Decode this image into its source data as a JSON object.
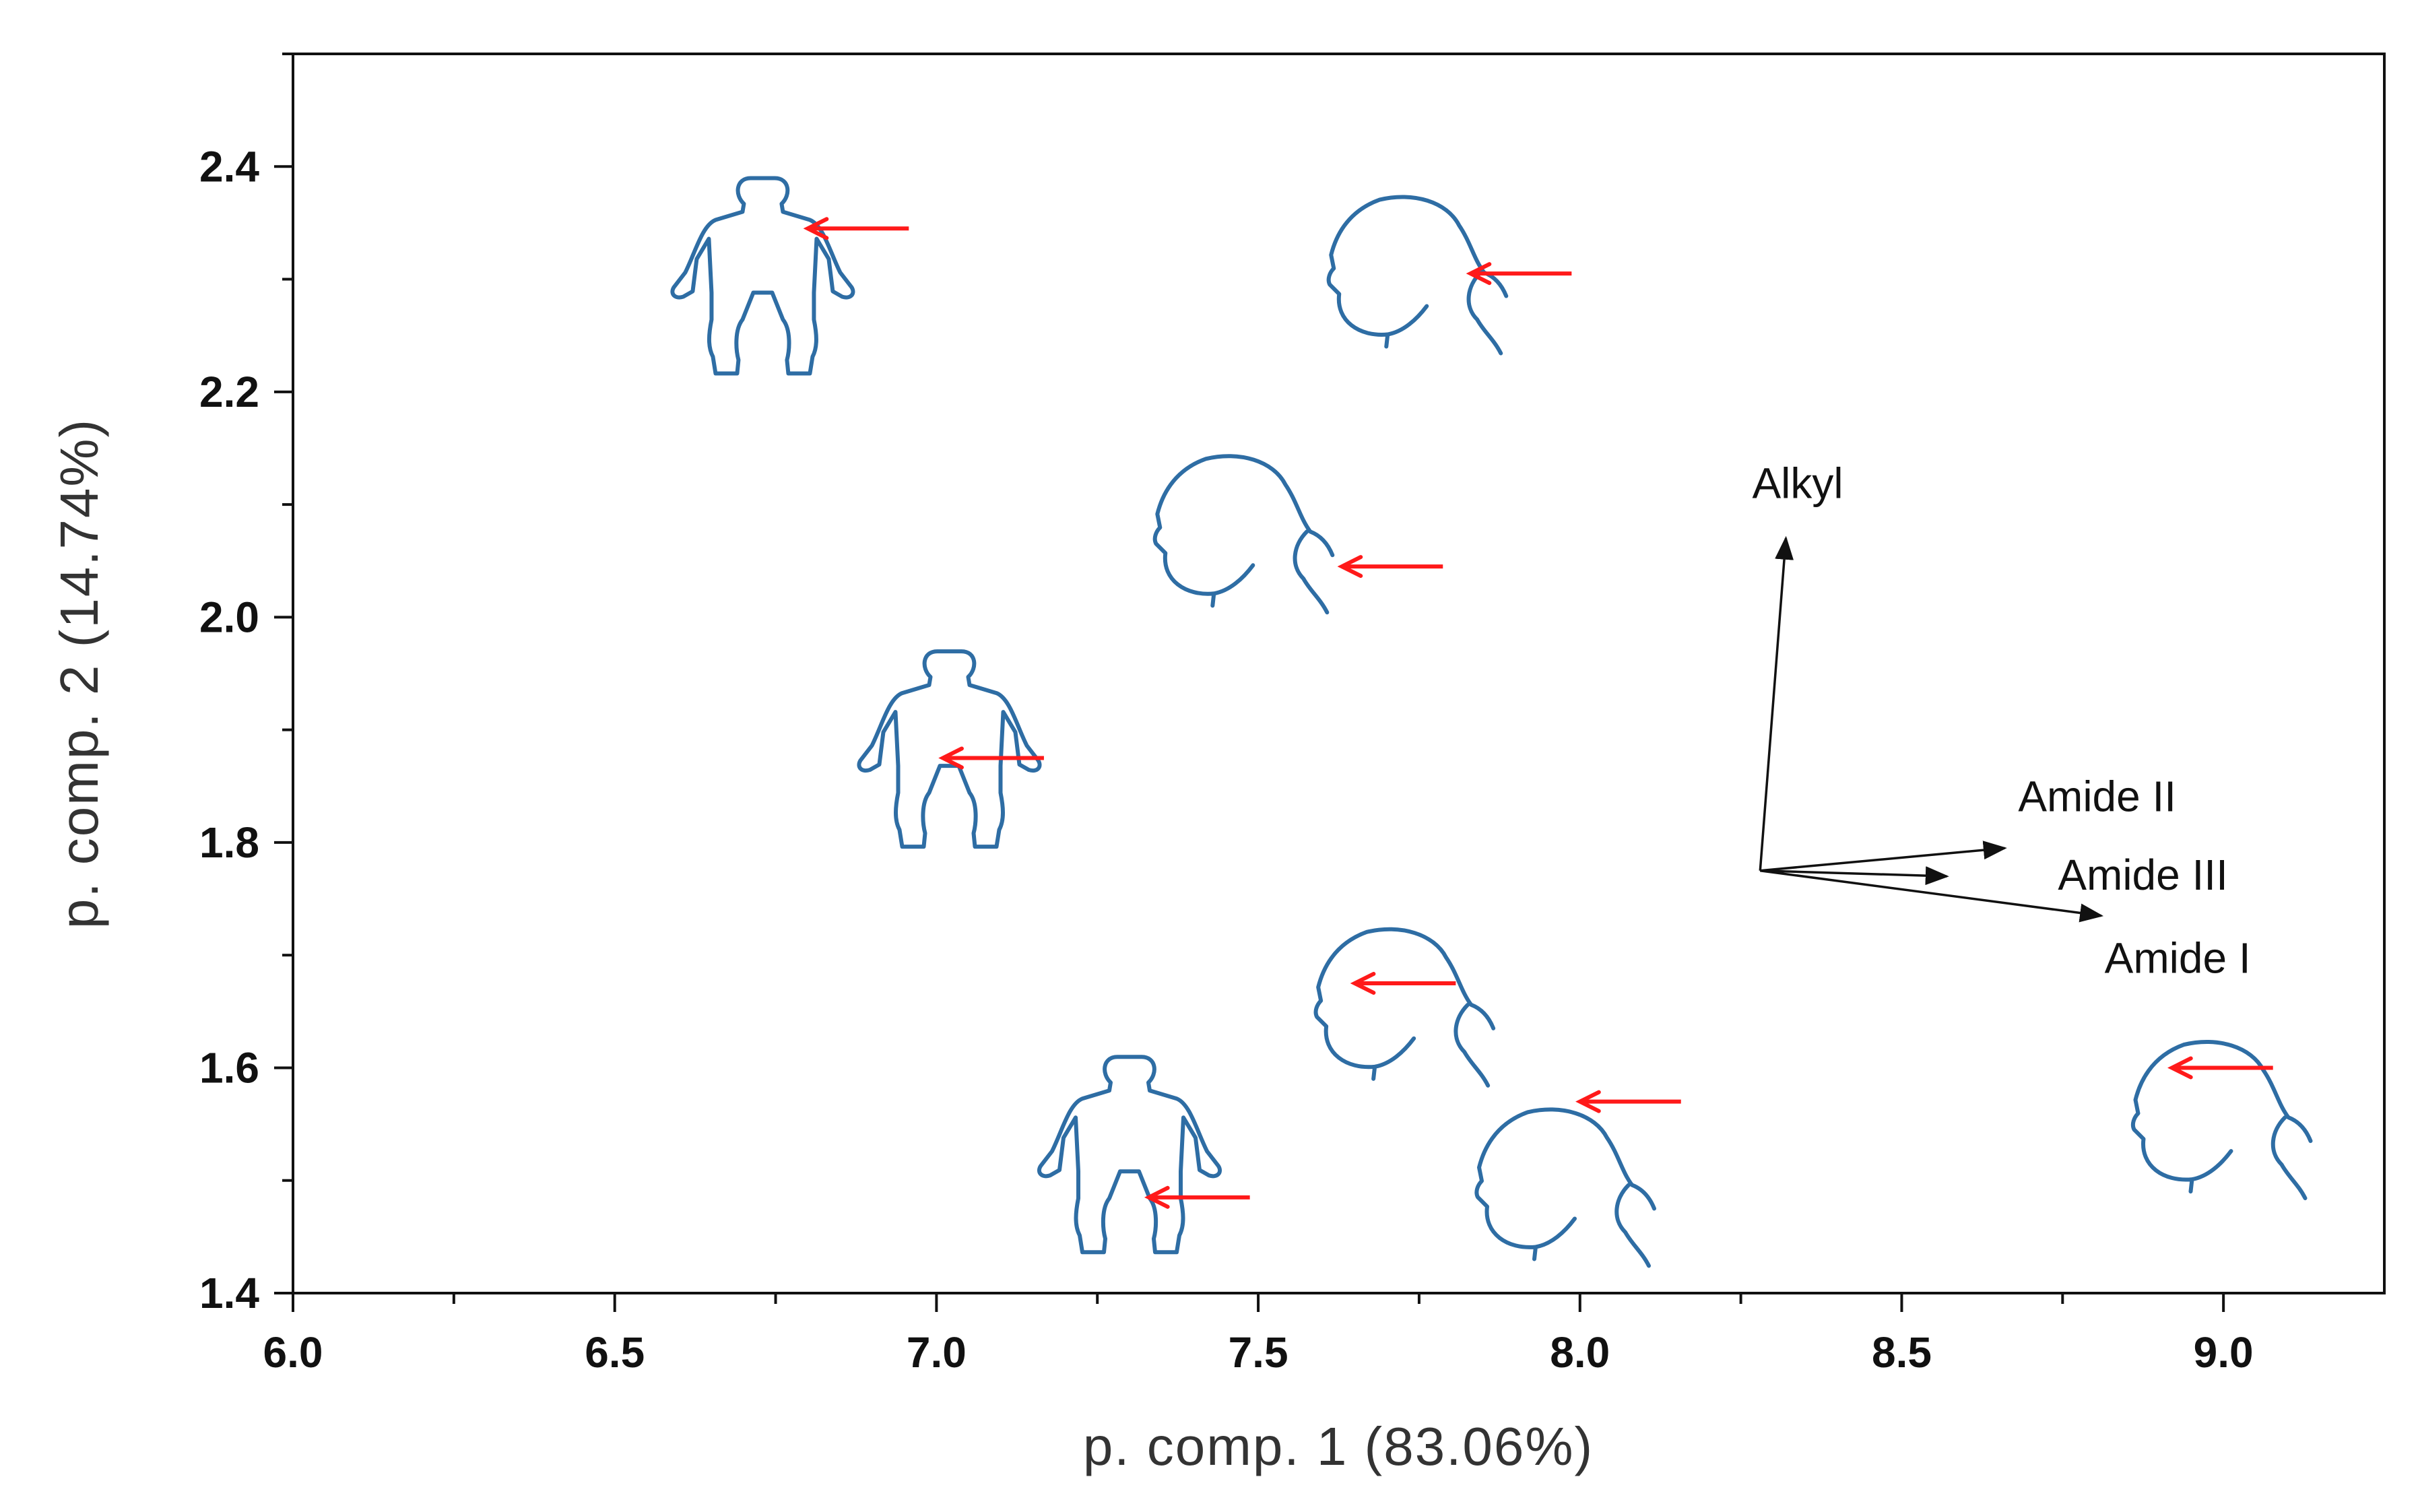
{
  "chart_data": {
    "type": "scatter",
    "title": "",
    "xlabel": "p. comp. 1 (83.06%)",
    "ylabel": "p. comp. 2 (14.74%)",
    "xlim": [
      6.0,
      9.25
    ],
    "ylim": [
      1.4,
      2.5
    ],
    "x_ticks": [
      "6.0",
      "6.5",
      "7.0",
      "7.5",
      "8.0",
      "8.5",
      "9.0"
    ],
    "y_ticks": [
      "1.4",
      "1.6",
      "1.8",
      "2.0",
      "2.2",
      "2.4"
    ],
    "grid": false,
    "points": [
      {
        "icon": "body-icon",
        "x": 6.73,
        "y": 2.3,
        "arrow_to": [
          6.8,
          2.345
        ]
      },
      {
        "icon": "head-icon",
        "x": 7.72,
        "y": 2.3,
        "arrow_to": [
          7.83,
          2.305
        ]
      },
      {
        "icon": "head-icon",
        "x": 7.45,
        "y": 2.07,
        "arrow_to": [
          7.63,
          2.045
        ]
      },
      {
        "icon": "body-icon",
        "x": 7.02,
        "y": 1.88,
        "arrow_to": [
          7.01,
          1.875
        ]
      },
      {
        "icon": "head-icon",
        "x": 7.7,
        "y": 1.65,
        "arrow_to": [
          7.65,
          1.675
        ]
      },
      {
        "icon": "body-icon",
        "x": 7.3,
        "y": 1.52,
        "arrow_to": [
          7.33,
          1.485
        ]
      },
      {
        "icon": "head-icon",
        "x": 7.95,
        "y": 1.49,
        "arrow_to": [
          8.0,
          1.57
        ]
      },
      {
        "icon": "head-icon",
        "x": 8.97,
        "y": 1.55,
        "arrow_to": [
          8.92,
          1.6
        ]
      }
    ],
    "loadings": [
      {
        "name": "Alkyl",
        "from": [
          8.28,
          1.775
        ],
        "to": [
          8.32,
          2.07
        ]
      },
      {
        "name": "Amide II",
        "from": [
          8.28,
          1.775
        ],
        "to": [
          8.66,
          1.795
        ]
      },
      {
        "name": "Amide III",
        "from": [
          8.28,
          1.775
        ],
        "to": [
          8.57,
          1.77
        ]
      },
      {
        "name": "Amide I",
        "from": [
          8.28,
          1.775
        ],
        "to": [
          8.81,
          1.735
        ]
      }
    ]
  }
}
